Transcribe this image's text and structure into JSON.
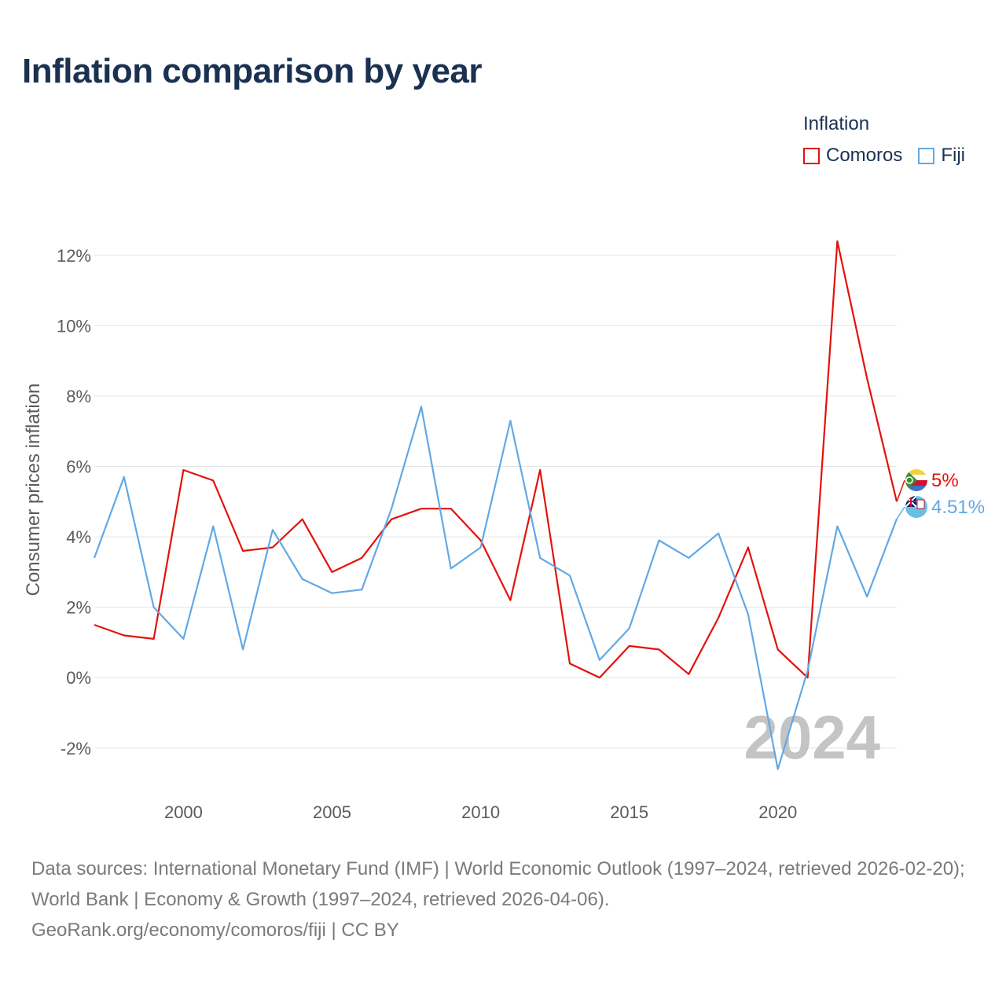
{
  "title": "Inflation comparison by year",
  "legend": {
    "title": "Inflation",
    "items": [
      {
        "name": "Comoros",
        "color": "#e3120b"
      },
      {
        "name": "Fiji",
        "color": "#62a8e5"
      }
    ]
  },
  "year_watermark": "2024",
  "footer": {
    "sources": "Data sources: International Monetary Fund (IMF) | World Economic Outlook (1997–2024, retrieved 2026-02-20); World Bank | Economy & Growth (1997–2024, retrieved 2026-04-06).",
    "attribution": "GeoRank.org/economy/comoros/fiji | CC BY"
  },
  "chart_data": {
    "type": "line",
    "title": "Inflation comparison by year",
    "xlabel": "",
    "ylabel": "Consumer prices inflation",
    "xlim": [
      1997,
      2024
    ],
    "ylim": [
      -3.3,
      13
    ],
    "x_ticks": [
      2000,
      2005,
      2010,
      2015,
      2020
    ],
    "y_ticks": [
      -2,
      0,
      2,
      4,
      6,
      8,
      10,
      12
    ],
    "y_tick_suffix": "%",
    "grid": true,
    "legend_position": "top-right",
    "x": [
      1997,
      1998,
      1999,
      2000,
      2001,
      2002,
      2003,
      2004,
      2005,
      2006,
      2007,
      2008,
      2009,
      2010,
      2011,
      2012,
      2013,
      2014,
      2015,
      2016,
      2017,
      2018,
      2019,
      2020,
      2021,
      2022,
      2023,
      2024
    ],
    "series": [
      {
        "name": "Comoros",
        "color": "#e3120b",
        "end_label": "5%",
        "values": [
          1.5,
          1.2,
          1.1,
          5.9,
          5.6,
          3.6,
          3.7,
          4.5,
          3.0,
          3.4,
          4.5,
          4.8,
          4.8,
          3.9,
          2.2,
          5.9,
          0.4,
          0.0,
          0.9,
          0.8,
          0.1,
          1.7,
          3.7,
          0.8,
          0.0,
          12.4,
          8.5,
          5.0
        ]
      },
      {
        "name": "Fiji",
        "color": "#62a8e5",
        "end_label": "4.51%",
        "values": [
          3.4,
          5.7,
          2.0,
          1.1,
          4.3,
          0.8,
          4.2,
          2.8,
          2.4,
          2.5,
          4.8,
          7.7,
          3.1,
          3.7,
          7.3,
          3.4,
          2.9,
          0.5,
          1.4,
          3.9,
          3.4,
          4.1,
          1.8,
          -2.6,
          0.2,
          4.3,
          2.3,
          4.51
        ]
      }
    ]
  }
}
